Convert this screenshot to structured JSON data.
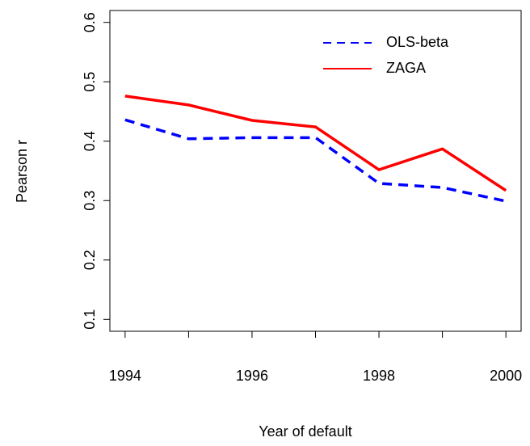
{
  "chart_data": {
    "type": "line",
    "x": [
      1994,
      1995,
      1996,
      1997,
      1998,
      1999,
      2000
    ],
    "series": [
      {
        "name": "OLS-beta",
        "color": "#0000ff",
        "dash": true,
        "values": [
          0.436,
          0.404,
          0.406,
          0.406,
          0.329,
          0.322,
          0.299
        ]
      },
      {
        "name": "ZAGA",
        "color": "#ff0000",
        "dash": false,
        "values": [
          0.476,
          0.461,
          0.435,
          0.424,
          0.352,
          0.387,
          0.317
        ]
      }
    ],
    "xlabel": "Year of default",
    "ylabel": "Pearson r",
    "xlim": [
      1993.76,
      2000.24
    ],
    "ylim": [
      0.08,
      0.62
    ],
    "xticks": [
      1994,
      1996,
      1998,
      2000
    ],
    "xticks_minor": [
      1995,
      1997,
      1999
    ],
    "yticks": [
      0.1,
      0.2,
      0.3,
      0.4,
      0.5,
      0.6
    ],
    "legend": "topright"
  }
}
